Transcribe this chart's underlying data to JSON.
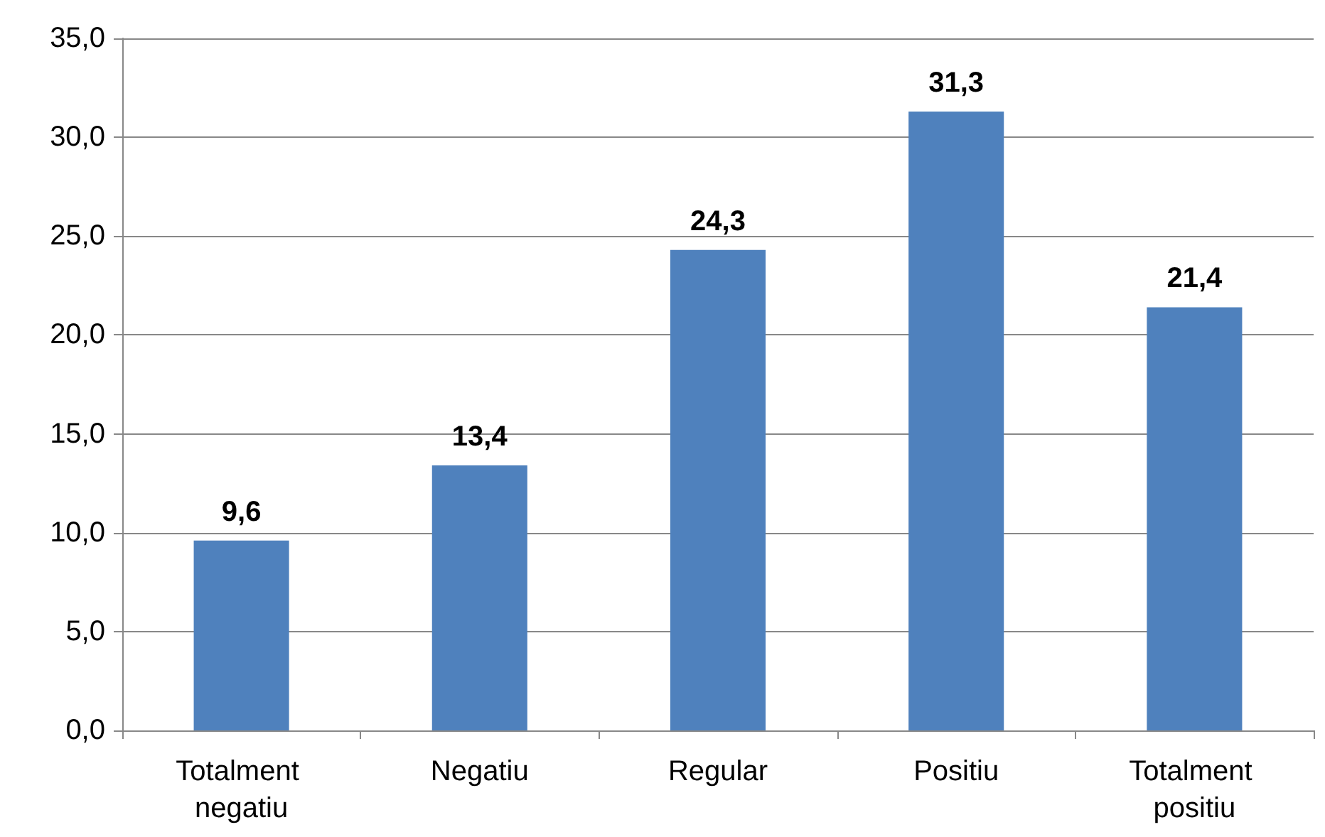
{
  "chart_data": {
    "type": "bar",
    "categories": [
      "Totalment negatiu",
      "Negatiu",
      "Regular",
      "Positiu",
      "Totalment positiu"
    ],
    "values": [
      9.6,
      13.4,
      24.3,
      31.3,
      21.4
    ],
    "value_labels": [
      "9,6",
      "13,4",
      "24,3",
      "31,3",
      "21,4"
    ],
    "color": "#4f81bd",
    "ylim": [
      0,
      35
    ],
    "yticks": [
      {
        "value": 0,
        "label": "0,0"
      },
      {
        "value": 5,
        "label": "5,0"
      },
      {
        "value": 10,
        "label": "10,0"
      },
      {
        "value": 15,
        "label": "15,0"
      },
      {
        "value": 20,
        "label": "20,0"
      },
      {
        "value": 25,
        "label": "25,0"
      },
      {
        "value": 30,
        "label": "30,0"
      },
      {
        "value": 35,
        "label": "35,0"
      }
    ],
    "grid": "y"
  }
}
